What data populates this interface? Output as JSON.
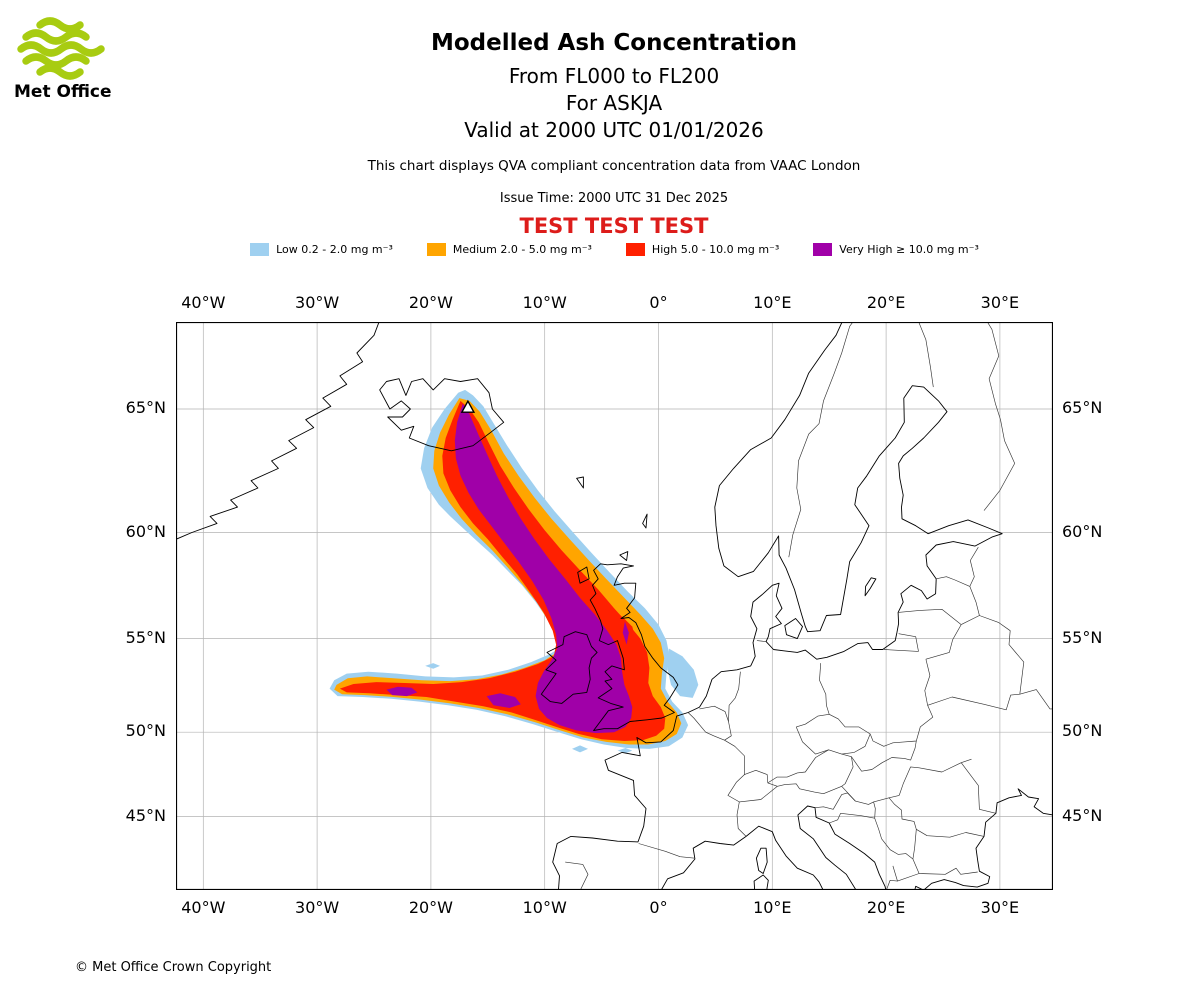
{
  "logo": {
    "text": "Met Office",
    "wave_color": "#a8cc11"
  },
  "header": {
    "title": "Modelled Ash Concentration",
    "flight_levels": "From FL000 to FL200",
    "volcano_line": "For ASKJA",
    "valid_time": "Valid at 2000 UTC 01/01/2026",
    "description": "This chart displays QVA compliant concentration data from VAAC London",
    "issue_time": "Issue Time: 2000 UTC 31 Dec 2025",
    "test_banner": "TEST TEST TEST",
    "test_banner_color": "#dd1c1a"
  },
  "legend": {
    "items": [
      {
        "key": "low",
        "label": "Low 0.2 - 2.0 mg m⁻³",
        "color": "#9fd0f0"
      },
      {
        "key": "medium",
        "label": "Medium 2.0 - 5.0 mg m⁻³",
        "color": "#ffa500"
      },
      {
        "key": "high",
        "label": "High 5.0 - 10.0 mg m⁻³",
        "color": "#ff2000"
      },
      {
        "key": "very-high",
        "label": "Very High ≥ 10.0 mg m⁻³",
        "color": "#a000a8"
      }
    ]
  },
  "map": {
    "x_ticks": [
      {
        "label": "40°W",
        "lon": -40
      },
      {
        "label": "30°W",
        "lon": -30
      },
      {
        "label": "20°W",
        "lon": -20
      },
      {
        "label": "10°W",
        "lon": -10
      },
      {
        "label": "0°",
        "lon": 0
      },
      {
        "label": "10°E",
        "lon": 10
      },
      {
        "label": "20°E",
        "lon": 20
      },
      {
        "label": "30°E",
        "lon": 30
      }
    ],
    "y_ticks": [
      {
        "label": "65°N",
        "lat": 65
      },
      {
        "label": "60°N",
        "lat": 60
      },
      {
        "label": "55°N",
        "lat": 55
      },
      {
        "label": "50°N",
        "lat": 50
      },
      {
        "label": "45°N",
        "lat": 45
      }
    ],
    "volcano_marker": {
      "name": "ASKJA",
      "lon": -16.75,
      "lat": 65.03
    },
    "grid_color": "#b3b3b3"
  },
  "footer": {
    "copyright": "© Met Office Crown Copyright"
  }
}
